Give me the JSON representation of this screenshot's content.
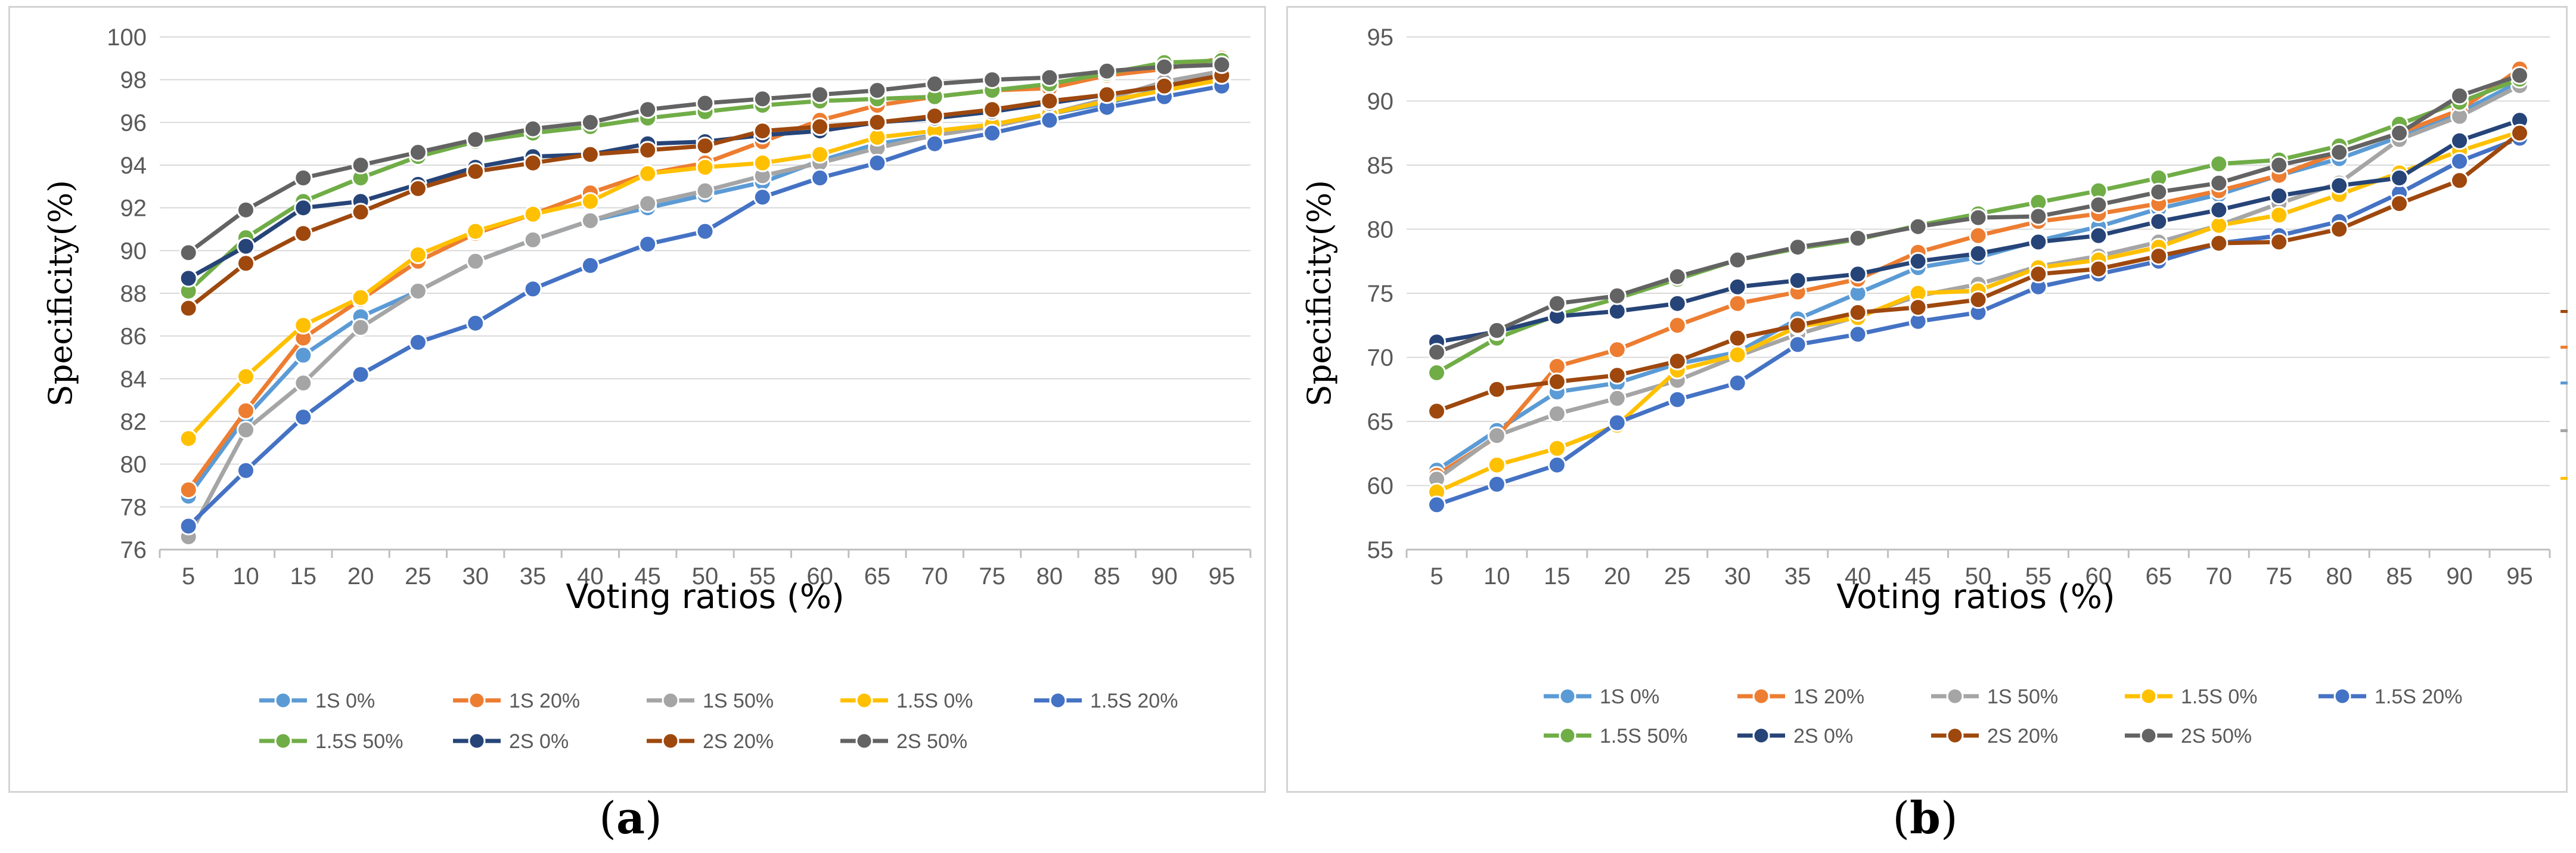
{
  "figure": {
    "labels": [
      "a",
      "b"
    ],
    "colors": [
      "#5b9bd5",
      "#ed7d31",
      "#a5a5a5",
      "#ffc000",
      "#4472c4",
      "#70ad47",
      "#264478",
      "#9e480e",
      "#636363"
    ]
  },
  "chart_data": [
    {
      "type": "line",
      "panel": "a",
      "title": "",
      "xlabel": "Voting ratios (%)",
      "ylabel": "Specificity(%)",
      "categories": [
        "5",
        "10",
        "15",
        "20",
        "25",
        "30",
        "35",
        "40",
        "45",
        "50",
        "55",
        "60",
        "65",
        "70",
        "75",
        "80",
        "85",
        "90",
        "95"
      ],
      "ylim": [
        76,
        100
      ],
      "yticks": [
        76,
        78,
        80,
        82,
        84,
        86,
        88,
        90,
        92,
        94,
        96,
        98,
        100
      ],
      "grid": true,
      "legend_position": "bottom",
      "series": [
        {
          "name": "1S 0%",
          "values": [
            78.5,
            82.2,
            85.1,
            86.9,
            88.1,
            89.5,
            90.5,
            91.4,
            92.0,
            92.6,
            93.2,
            94.2,
            95.0,
            95.4,
            95.9,
            96.4,
            96.9,
            97.6,
            98.3
          ]
        },
        {
          "name": "1S 20%",
          "values": [
            78.8,
            82.5,
            85.9,
            87.7,
            89.5,
            90.8,
            91.7,
            92.7,
            93.6,
            94.1,
            95.1,
            96.1,
            96.8,
            97.2,
            97.5,
            97.6,
            98.2,
            98.5,
            99.0
          ]
        },
        {
          "name": "1S 50%",
          "values": [
            76.6,
            81.6,
            83.8,
            86.4,
            88.1,
            89.5,
            90.5,
            91.4,
            92.2,
            92.8,
            93.5,
            94.1,
            94.8,
            95.4,
            95.8,
            96.4,
            97.1,
            97.9,
            98.4
          ]
        },
        {
          "name": "1.5S 0%",
          "values": [
            81.2,
            84.1,
            86.5,
            87.8,
            89.8,
            90.9,
            91.7,
            92.3,
            93.6,
            93.9,
            94.1,
            94.5,
            95.3,
            95.6,
            95.9,
            96.4,
            97.0,
            97.5,
            98.0
          ]
        },
        {
          "name": "1.5S 20%",
          "values": [
            77.1,
            79.7,
            82.2,
            84.2,
            85.7,
            86.6,
            88.2,
            89.3,
            90.3,
            90.9,
            92.5,
            93.4,
            94.1,
            95.0,
            95.5,
            96.1,
            96.7,
            97.2,
            97.7
          ]
        },
        {
          "name": "1.5S 50%",
          "values": [
            88.1,
            90.6,
            92.3,
            93.4,
            94.4,
            95.1,
            95.5,
            95.8,
            96.2,
            96.5,
            96.8,
            97.0,
            97.1,
            97.2,
            97.5,
            97.8,
            98.3,
            98.8,
            98.9
          ]
        },
        {
          "name": "2S 0%",
          "values": [
            88.7,
            90.2,
            92.0,
            92.3,
            93.1,
            93.9,
            94.4,
            94.5,
            95.0,
            95.1,
            95.4,
            95.6,
            96.0,
            96.2,
            96.5,
            96.9,
            97.3,
            97.7,
            98.2
          ]
        },
        {
          "name": "2S 20%",
          "values": [
            87.3,
            89.4,
            90.8,
            91.8,
            92.9,
            93.7,
            94.1,
            94.5,
            94.7,
            94.9,
            95.6,
            95.8,
            96.0,
            96.3,
            96.6,
            97.0,
            97.3,
            97.7,
            98.2
          ]
        },
        {
          "name": "2S 50%",
          "values": [
            89.9,
            91.9,
            93.4,
            94.0,
            94.6,
            95.2,
            95.7,
            96.0,
            96.6,
            96.9,
            97.1,
            97.3,
            97.5,
            97.8,
            98.0,
            98.1,
            98.4,
            98.6,
            98.7
          ]
        }
      ]
    },
    {
      "type": "line",
      "panel": "b",
      "title": "",
      "xlabel": "Voting ratios (%)",
      "ylabel": "Specificity(%)",
      "categories": [
        "5",
        "10",
        "15",
        "20",
        "25",
        "30",
        "35",
        "40",
        "45",
        "50",
        "55",
        "60",
        "65",
        "70",
        "75",
        "80",
        "85",
        "90",
        "95"
      ],
      "ylim": [
        55,
        95
      ],
      "yticks": [
        55,
        60,
        65,
        70,
        75,
        80,
        85,
        90,
        95
      ],
      "grid": true,
      "legend_position": "bottom",
      "series": [
        {
          "name": "1S 0%",
          "values": [
            61.2,
            64.3,
            67.3,
            68.0,
            69.5,
            70.4,
            73.0,
            75.0,
            77.0,
            77.8,
            79.1,
            80.2,
            81.6,
            82.7,
            84.2,
            85.5,
            87.2,
            89.1,
            91.5
          ]
        },
        {
          "name": "1S 20%",
          "values": [
            60.8,
            63.8,
            69.3,
            70.6,
            72.5,
            74.2,
            75.1,
            76.1,
            78.2,
            79.5,
            80.6,
            81.2,
            82.0,
            83.0,
            84.2,
            86.0,
            87.5,
            89.3,
            92.5
          ]
        },
        {
          "name": "1S 50%",
          "values": [
            60.5,
            63.9,
            65.6,
            66.8,
            68.2,
            70.1,
            71.8,
            73.2,
            74.8,
            75.7,
            77.1,
            77.9,
            79.0,
            80.3,
            82.0,
            83.6,
            87.0,
            88.8,
            91.2
          ]
        },
        {
          "name": "1.5S 0%",
          "values": [
            59.5,
            61.6,
            62.9,
            64.7,
            69.0,
            70.2,
            72.4,
            73.1,
            75.0,
            75.2,
            77.0,
            77.6,
            78.6,
            80.3,
            81.1,
            82.7,
            84.4,
            86.1,
            87.6
          ]
        },
        {
          "name": "1.5S 20%",
          "values": [
            58.5,
            60.1,
            61.6,
            64.9,
            66.7,
            68.0,
            71.0,
            71.8,
            72.8,
            73.5,
            75.5,
            76.5,
            77.5,
            78.9,
            79.5,
            80.6,
            82.8,
            85.3,
            87.1
          ]
        },
        {
          "name": "1.5S 50%",
          "values": [
            68.8,
            71.5,
            73.3,
            74.6,
            76.1,
            77.6,
            78.5,
            79.2,
            80.3,
            81.2,
            82.1,
            83.0,
            84.0,
            85.1,
            85.4,
            86.5,
            88.2,
            89.9,
            91.7
          ]
        },
        {
          "name": "2S 0%",
          "values": [
            71.2,
            72.0,
            73.2,
            73.6,
            74.2,
            75.5,
            76.0,
            76.5,
            77.5,
            78.1,
            79.0,
            79.5,
            80.6,
            81.5,
            82.6,
            83.4,
            84.0,
            86.9,
            88.5
          ]
        },
        {
          "name": "2S 20%",
          "values": [
            65.8,
            67.5,
            68.1,
            68.6,
            69.7,
            71.5,
            72.5,
            73.5,
            73.9,
            74.5,
            76.5,
            76.9,
            77.9,
            78.9,
            79.0,
            80.0,
            82.0,
            83.8,
            87.5
          ]
        },
        {
          "name": "2S 50%",
          "values": [
            70.4,
            72.1,
            74.2,
            74.8,
            76.3,
            77.6,
            78.6,
            79.3,
            80.2,
            80.9,
            81.0,
            81.9,
            82.9,
            83.6,
            85.0,
            86.0,
            87.5,
            90.4,
            92.0
          ]
        }
      ]
    }
  ]
}
